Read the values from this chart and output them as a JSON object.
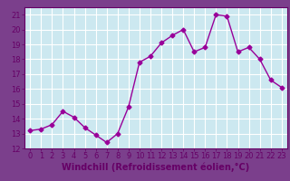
{
  "x": [
    0,
    1,
    2,
    3,
    4,
    5,
    6,
    7,
    8,
    9,
    10,
    11,
    12,
    13,
    14,
    15,
    16,
    17,
    18,
    19,
    20,
    21,
    22,
    23
  ],
  "y": [
    13.2,
    13.3,
    13.6,
    14.5,
    14.1,
    13.4,
    12.9,
    12.4,
    13.0,
    14.8,
    17.8,
    18.2,
    19.1,
    19.6,
    20.0,
    18.5,
    18.8,
    21.0,
    20.9,
    18.5,
    18.8,
    18.0,
    16.6,
    16.1
  ],
  "line_color": "#990099",
  "marker": "D",
  "marker_size": 2.5,
  "linewidth": 1.0,
  "xlabel": "Windchill (Refroidissement éolien,°C)",
  "xlabel_fontsize": 7.0,
  "ylim": [
    12,
    21.5
  ],
  "yticks": [
    12,
    13,
    14,
    15,
    16,
    17,
    18,
    19,
    20,
    21
  ],
  "xticks": [
    0,
    1,
    2,
    3,
    4,
    5,
    6,
    7,
    8,
    9,
    10,
    11,
    12,
    13,
    14,
    15,
    16,
    17,
    18,
    19,
    20,
    21,
    22,
    23
  ],
  "background_color": "#cce8f0",
  "grid_color": "#ffffff",
  "tick_fontsize": 6.0,
  "fig_bg": "#7b3f8c",
  "text_color": "#660066"
}
